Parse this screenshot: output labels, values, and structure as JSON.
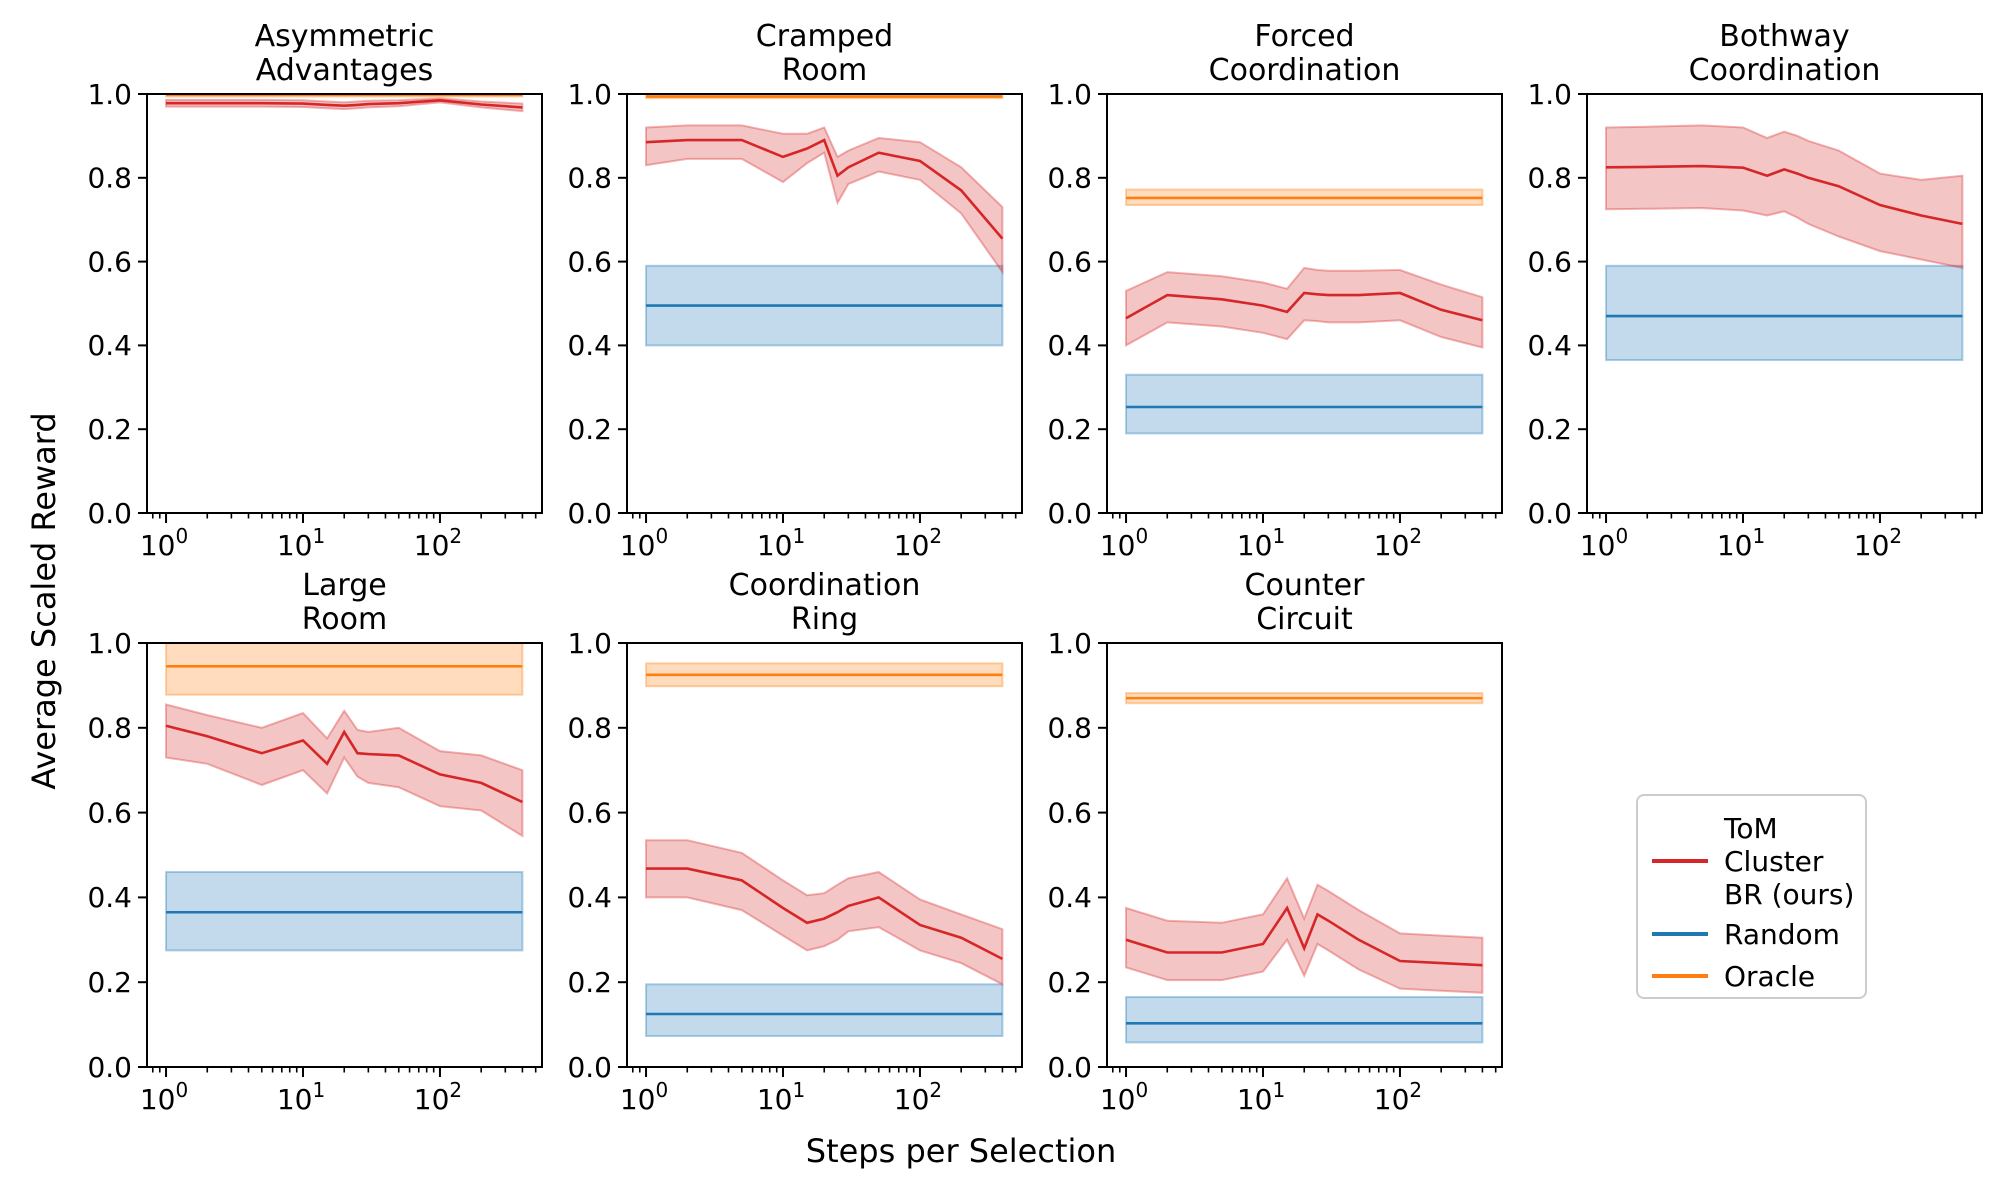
{
  "figure": {
    "ylabel": "Average Scaled Reward",
    "xlabel": "Steps per Selection"
  },
  "legend": {
    "entries": [
      {
        "series": "tom_cluster_br",
        "label": "ToM\nCluster\nBR (ours)",
        "color": "#d62728"
      },
      {
        "series": "random",
        "label": "Random",
        "color": "#1f77b4"
      },
      {
        "series": "oracle",
        "label": "Oracle",
        "color": "#ff7f0e"
      }
    ]
  },
  "chart_data": {
    "type": "line",
    "x_label": "Steps per Selection",
    "y_label": "Average Scaled Reward",
    "x_scale": "log",
    "grid": false,
    "legend_position": "right-bottom",
    "xlim": [
      0.726,
      556
    ],
    "ylim": [
      0.0,
      1.0
    ],
    "x_ticks": [
      1,
      10,
      100
    ],
    "y_ticks": [
      0.0,
      0.2,
      0.4,
      0.6,
      0.8,
      1.0
    ],
    "series_colors": {
      "tom_cluster_br": "#d62728",
      "random": "#1f77b4",
      "oracle": "#ff7f0e"
    },
    "x": [
      1,
      2,
      5,
      10,
      15,
      20,
      25,
      30,
      50,
      100,
      200,
      400
    ],
    "panels": [
      {
        "title": "Asymmetric\nAdvantages",
        "row": 0,
        "col": 0,
        "tom_cluster_br": {
          "y": [
            0.978,
            0.978,
            0.978,
            0.977,
            0.974,
            0.972,
            0.974,
            0.976,
            0.978,
            0.985,
            0.975,
            0.968
          ],
          "hi": [
            0.986,
            0.986,
            0.986,
            0.985,
            0.982,
            0.98,
            0.982,
            0.984,
            0.985,
            0.99,
            0.982,
            0.977
          ],
          "lo": [
            0.97,
            0.97,
            0.97,
            0.969,
            0.966,
            0.964,
            0.966,
            0.968,
            0.971,
            0.98,
            0.968,
            0.959
          ]
        },
        "random": null,
        "oracle": {
          "y": 0.998,
          "lo": 0.994,
          "hi": 1.0
        }
      },
      {
        "title": "Cramped\nRoom",
        "row": 0,
        "col": 1,
        "tom_cluster_br": {
          "y": [
            0.885,
            0.89,
            0.89,
            0.85,
            0.87,
            0.89,
            0.805,
            0.825,
            0.86,
            0.84,
            0.77,
            0.655
          ],
          "hi": [
            0.92,
            0.925,
            0.925,
            0.905,
            0.905,
            0.92,
            0.85,
            0.865,
            0.895,
            0.885,
            0.825,
            0.73
          ],
          "lo": [
            0.83,
            0.845,
            0.845,
            0.79,
            0.835,
            0.86,
            0.74,
            0.785,
            0.815,
            0.795,
            0.715,
            0.575
          ]
        },
        "random": {
          "y": 0.495,
          "lo": 0.4,
          "hi": 0.59
        },
        "oracle": {
          "y": 0.994,
          "lo": 0.99,
          "hi": 0.998
        }
      },
      {
        "title": "Forced\nCoordination",
        "row": 0,
        "col": 2,
        "tom_cluster_br": {
          "y": [
            0.465,
            0.52,
            0.51,
            0.495,
            0.48,
            0.525,
            0.522,
            0.52,
            0.52,
            0.525,
            0.485,
            0.46
          ],
          "hi": [
            0.53,
            0.575,
            0.565,
            0.55,
            0.535,
            0.585,
            0.58,
            0.578,
            0.578,
            0.58,
            0.545,
            0.515
          ],
          "lo": [
            0.4,
            0.455,
            0.445,
            0.43,
            0.415,
            0.46,
            0.458,
            0.455,
            0.455,
            0.46,
            0.42,
            0.395
          ]
        },
        "random": {
          "y": 0.253,
          "lo": 0.19,
          "hi": 0.33
        },
        "oracle": {
          "y": 0.752,
          "lo": 0.735,
          "hi": 0.772
        }
      },
      {
        "title": "Bothway\nCoordination",
        "row": 0,
        "col": 3,
        "tom_cluster_br": {
          "y": [
            0.825,
            0.826,
            0.828,
            0.824,
            0.805,
            0.82,
            0.81,
            0.8,
            0.78,
            0.735,
            0.71,
            0.69
          ],
          "hi": [
            0.92,
            0.922,
            0.925,
            0.92,
            0.895,
            0.91,
            0.9,
            0.888,
            0.865,
            0.81,
            0.795,
            0.805
          ],
          "lo": [
            0.725,
            0.726,
            0.728,
            0.722,
            0.71,
            0.72,
            0.705,
            0.69,
            0.66,
            0.625,
            0.605,
            0.585
          ]
        },
        "random": {
          "y": 0.47,
          "lo": 0.365,
          "hi": 0.59
        },
        "oracle": null
      },
      {
        "title": "Large\nRoom",
        "row": 1,
        "col": 0,
        "tom_cluster_br": {
          "y": [
            0.805,
            0.78,
            0.74,
            0.77,
            0.715,
            0.79,
            0.74,
            0.738,
            0.735,
            0.69,
            0.67,
            0.625
          ],
          "hi": [
            0.855,
            0.83,
            0.8,
            0.835,
            0.775,
            0.84,
            0.795,
            0.79,
            0.8,
            0.745,
            0.735,
            0.7
          ],
          "lo": [
            0.73,
            0.715,
            0.665,
            0.7,
            0.645,
            0.73,
            0.685,
            0.67,
            0.66,
            0.615,
            0.605,
            0.545
          ]
        },
        "random": {
          "y": 0.365,
          "lo": 0.275,
          "hi": 0.46
        },
        "oracle": {
          "y": 0.945,
          "lo": 0.878,
          "hi": 1.0
        }
      },
      {
        "title": "Coordination\nRing",
        "row": 1,
        "col": 1,
        "tom_cluster_br": {
          "y": [
            0.468,
            0.468,
            0.44,
            0.375,
            0.34,
            0.35,
            0.365,
            0.38,
            0.4,
            0.335,
            0.305,
            0.255
          ],
          "hi": [
            0.535,
            0.535,
            0.505,
            0.44,
            0.405,
            0.41,
            0.43,
            0.445,
            0.46,
            0.395,
            0.36,
            0.325
          ],
          "lo": [
            0.4,
            0.4,
            0.37,
            0.31,
            0.275,
            0.285,
            0.3,
            0.32,
            0.33,
            0.275,
            0.245,
            0.195
          ]
        },
        "random": {
          "y": 0.125,
          "lo": 0.073,
          "hi": 0.195
        },
        "oracle": {
          "y": 0.925,
          "lo": 0.898,
          "hi": 0.952
        }
      },
      {
        "title": "Counter\nCircuit",
        "row": 1,
        "col": 2,
        "tom_cluster_br": {
          "y": [
            0.3,
            0.27,
            0.27,
            0.29,
            0.375,
            0.28,
            0.36,
            0.345,
            0.3,
            0.25,
            0.245,
            0.24
          ],
          "hi": [
            0.375,
            0.345,
            0.34,
            0.36,
            0.445,
            0.35,
            0.43,
            0.415,
            0.37,
            0.315,
            0.31,
            0.305
          ],
          "lo": [
            0.235,
            0.205,
            0.205,
            0.225,
            0.3,
            0.215,
            0.29,
            0.275,
            0.23,
            0.185,
            0.18,
            0.175
          ]
        },
        "random": {
          "y": 0.103,
          "lo": 0.058,
          "hi": 0.165
        },
        "oracle": {
          "y": 0.87,
          "lo": 0.858,
          "hi": 0.882
        }
      }
    ]
  }
}
